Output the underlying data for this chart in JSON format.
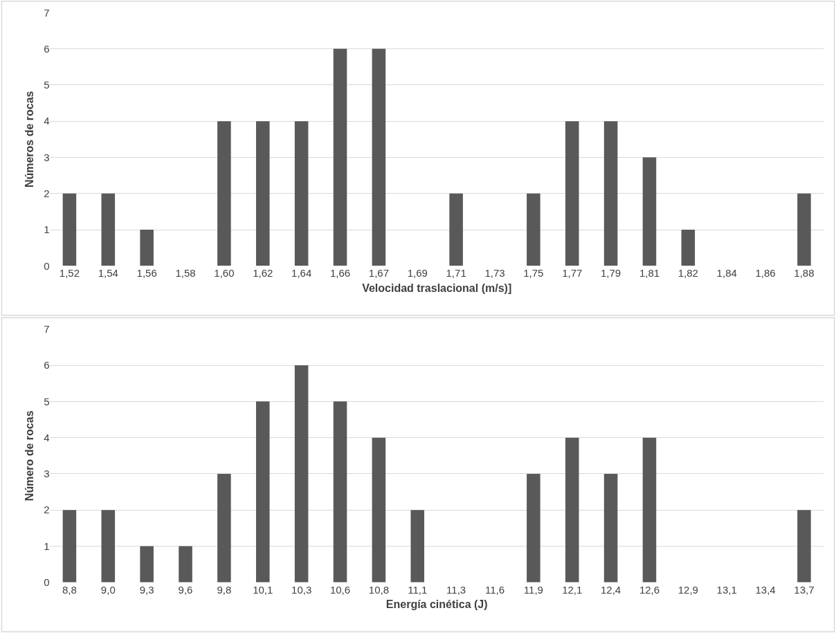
{
  "chart_data": [
    {
      "type": "bar",
      "xlabel": "Velocidad traslacional (m/s)]",
      "ylabel": "Números de rocas",
      "categories": [
        "1,52",
        "1,54",
        "1,56",
        "1,58",
        "1,60",
        "1,62",
        "1,64",
        "1,66",
        "1,67",
        "1,69",
        "1,71",
        "1,73",
        "1,75",
        "1,77",
        "1,79",
        "1,81",
        "1,82",
        "1,84",
        "1,86",
        "1,88"
      ],
      "values": [
        2,
        2,
        1,
        0,
        4,
        4,
        4,
        6,
        6,
        0,
        2,
        0,
        2,
        4,
        4,
        3,
        1,
        0,
        0,
        2
      ],
      "color": "#595959",
      "ylim": [
        0,
        7
      ],
      "yticks": [
        0,
        1,
        2,
        3,
        4,
        5,
        6,
        7
      ],
      "grid": "y"
    },
    {
      "type": "bar",
      "xlabel": "Energía cinética (J)",
      "ylabel": "Número de rocas",
      "categories": [
        "8,8",
        "9,0",
        "9,3",
        "9,6",
        "9,8",
        "10,1",
        "10,3",
        "10,6",
        "10,8",
        "11,1",
        "11,3",
        "11,6",
        "11,9",
        "12,1",
        "12,4",
        "12,6",
        "12,9",
        "13,1",
        "13,4",
        "13,7"
      ],
      "values": [
        2,
        2,
        1,
        1,
        3,
        5,
        6,
        5,
        4,
        2,
        0,
        0,
        3,
        4,
        3,
        4,
        0,
        0,
        0,
        2
      ],
      "color": "#595959",
      "ylim": [
        0,
        7
      ],
      "yticks": [
        0,
        1,
        2,
        3,
        4,
        5,
        6,
        7
      ],
      "grid": "y"
    }
  ]
}
